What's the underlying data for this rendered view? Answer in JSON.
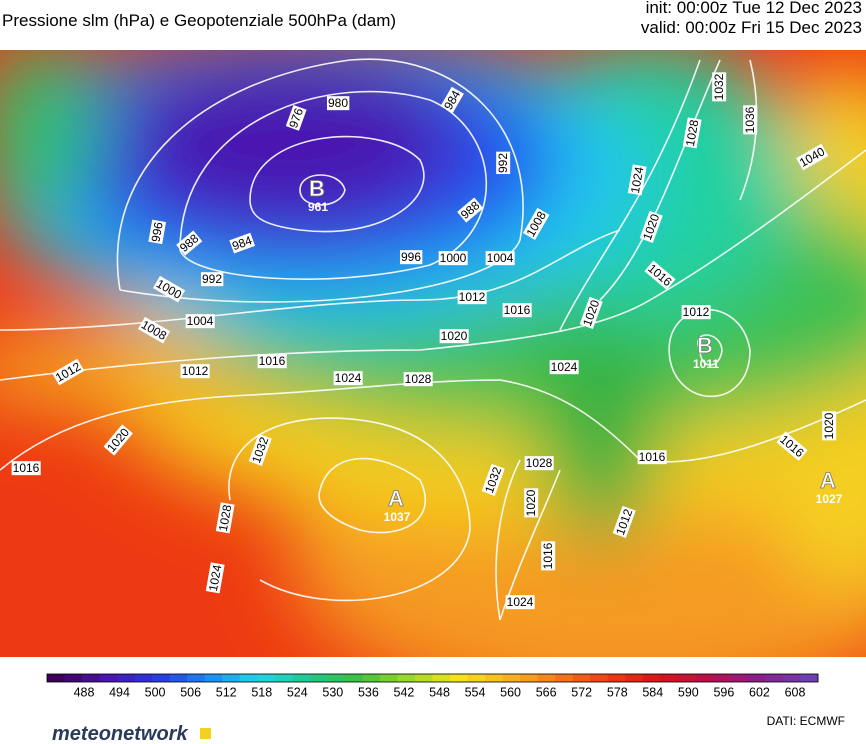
{
  "header": {
    "title": "Pressione slm (hPa) e Geopotenziale 500hPa (dam)",
    "init": "init: 00:00z Tue 12 Dec 2023",
    "valid": "valid: 00:00z Fri 15 Dec 2023"
  },
  "map": {
    "centers": [
      {
        "letter": "B",
        "value": 961
      },
      {
        "letter": "A",
        "value": 1037
      },
      {
        "letter": "B",
        "value": 1011
      },
      {
        "letter": "A",
        "value": 1027
      }
    ],
    "isobar_labels": [
      980,
      976,
      984,
      992,
      988,
      996,
      1000,
      1004,
      1008,
      1012,
      1016,
      1020,
      1024,
      1028,
      996,
      988,
      984,
      992,
      1000,
      1004,
      1008,
      1012,
      1012,
      1016,
      1024,
      1020,
      1016,
      1032,
      1028,
      1024,
      1032,
      1028,
      1020,
      1016,
      1024,
      1012,
      1016,
      1016,
      1020,
      1012,
      1020,
      1016,
      1020,
      1024,
      1028,
      1032,
      1036,
      1040
    ]
  },
  "colorbar": {
    "ticks": [
      488,
      494,
      500,
      506,
      512,
      518,
      524,
      530,
      536,
      542,
      548,
      554,
      560,
      566,
      572,
      578,
      584,
      590,
      596,
      602,
      608
    ]
  },
  "footer": {
    "brand": "meteonetwork",
    "source": "DATI: ECMWF"
  }
}
